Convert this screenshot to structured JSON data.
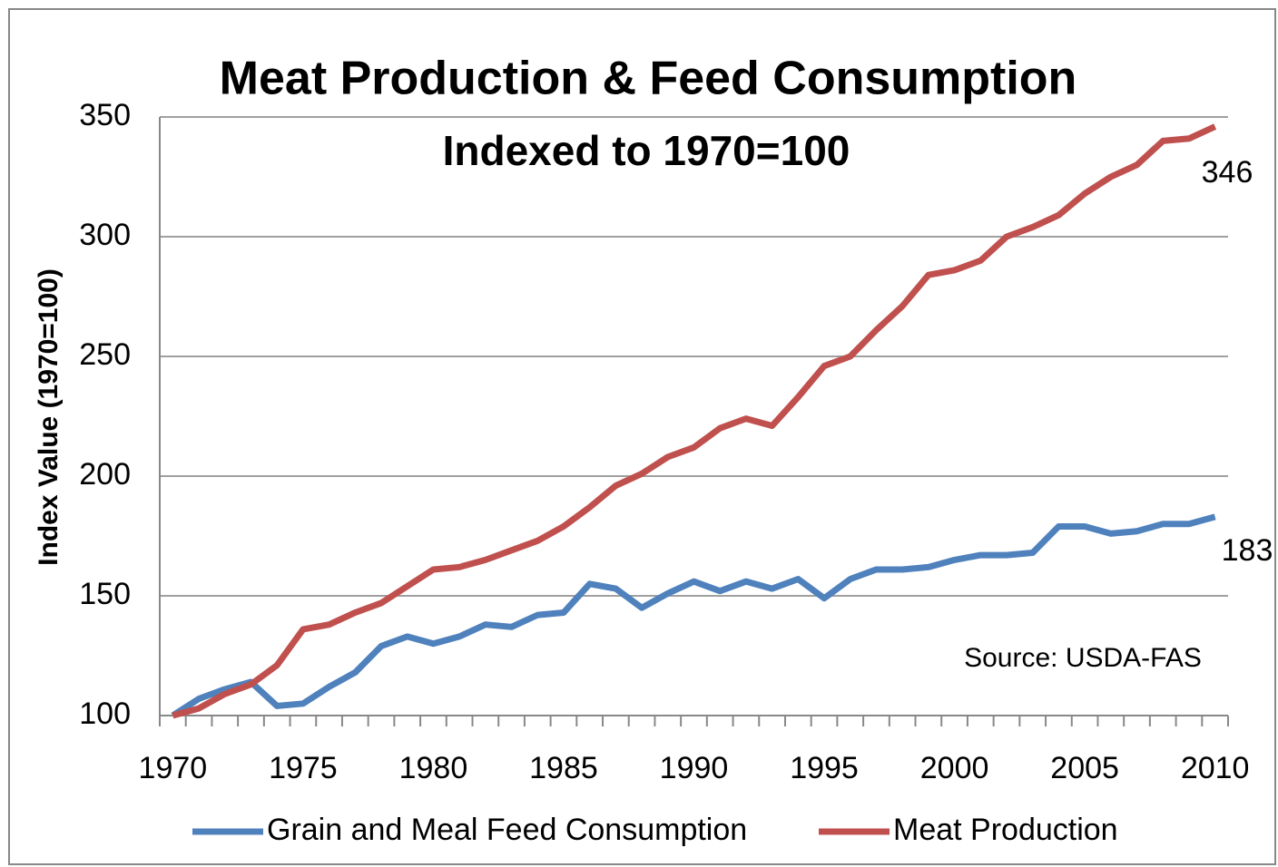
{
  "chart_data": {
    "type": "line",
    "title": "Meat Production & Feed Consumption",
    "subtitle": "Indexed to 1970=100",
    "y_label": "Index Value (1970=100)",
    "annotations": [
      "346",
      "183",
      "Source: USDA-FAS"
    ],
    "x": [
      1970,
      1971,
      1972,
      1973,
      1974,
      1975,
      1976,
      1977,
      1978,
      1979,
      1980,
      1981,
      1982,
      1983,
      1984,
      1985,
      1986,
      1987,
      1988,
      1989,
      1990,
      1991,
      1992,
      1993,
      1994,
      1995,
      1996,
      1997,
      1998,
      1999,
      2000,
      2001,
      2002,
      2003,
      2004,
      2005,
      2006,
      2007,
      2008,
      2009,
      2010
    ],
    "series": [
      {
        "name": "Grain and Meal Feed Consumption",
        "color": "#4f81bd",
        "values": [
          100,
          107,
          111,
          114,
          104,
          105,
          112,
          118,
          129,
          133,
          130,
          133,
          138,
          137,
          142,
          143,
          155,
          153,
          145,
          151,
          156,
          152,
          156,
          153,
          157,
          149,
          157,
          161,
          161,
          162,
          165,
          167,
          167,
          168,
          179,
          179,
          176,
          177,
          180,
          180,
          183
        ]
      },
      {
        "name": "Meat Production",
        "color": "#c0504d",
        "values": [
          100,
          103,
          109,
          113,
          121,
          136,
          138,
          143,
          147,
          154,
          161,
          162,
          165,
          169,
          173,
          179,
          187,
          196,
          201,
          208,
          212,
          220,
          224,
          221,
          233,
          246,
          250,
          261,
          271,
          284,
          286,
          290,
          300,
          304,
          309,
          318,
          325,
          330,
          340,
          341,
          346
        ]
      }
    ],
    "xlim": [
      1969.5,
      2010.5
    ],
    "xticks": [
      1970,
      1975,
      1980,
      1985,
      1990,
      1995,
      2000,
      2005,
      2010
    ],
    "ylim": [
      100,
      350
    ],
    "yticks": [
      100,
      150,
      200,
      250,
      300,
      350
    ],
    "grid": true,
    "legend": "bottom"
  }
}
